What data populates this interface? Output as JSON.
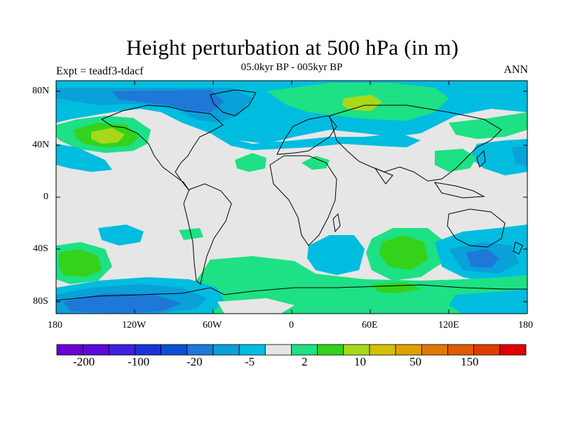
{
  "title": "Height perturbation at 500 hPa (in m)",
  "subtitle": "05.0kyr BP - 005kyr BP",
  "left_label": "Expt = teadf3-tdacf",
  "right_label": "ANN",
  "lat_labels": [
    "80N",
    "40N",
    "0",
    "40S",
    "80S"
  ],
  "lon_labels": [
    "180",
    "120W",
    "60W",
    "0",
    "60E",
    "120E",
    "180"
  ],
  "colorbar": {
    "colors": [
      "#6a00d2",
      "#5a0ad8",
      "#3b1fdf",
      "#1b32d8",
      "#0a4fd6",
      "#1d78d8",
      "#0aa0d8",
      "#00bde0",
      "#e6e6e6",
      "#1ee084",
      "#34d21a",
      "#a8d81a",
      "#d2c00a",
      "#e0a000",
      "#e07800",
      "#e05a00",
      "#e03c00",
      "#e00000"
    ],
    "labels": [
      "-200",
      "-100",
      "-20",
      "-5",
      "2",
      "10",
      "50",
      "150"
    ]
  },
  "map_colors": {
    "background": "#e6e6e6",
    "lightblue": "#00bde0",
    "midblue": "#0aa0d8",
    "blue": "#1d78d8",
    "green": "#1ee084",
    "brightgreen": "#34d21a",
    "yellowgreen": "#a8d81a",
    "coast": "#000000"
  }
}
